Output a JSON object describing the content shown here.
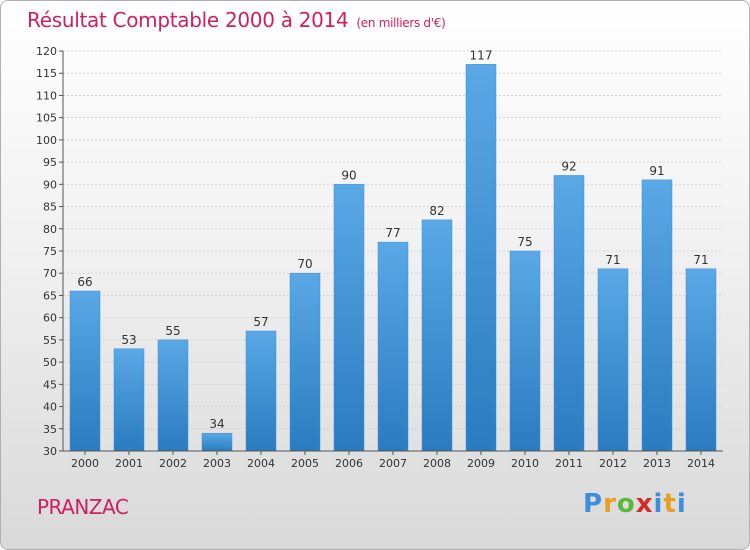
{
  "title": {
    "main": "Résultat Comptable 2000 à 2014",
    "sub": "(en milliers d'€)"
  },
  "town": "PRANZAC",
  "logo": {
    "text": "Proxiti",
    "letters": [
      "P",
      "r",
      "o",
      "x",
      "i",
      "t",
      "i"
    ]
  },
  "colors": {
    "title": "#cf1f5f",
    "bar_top": "#5aa8e6",
    "bar_bottom": "#2a7bc0"
  },
  "chart_data": {
    "type": "bar",
    "title": "Résultat Comptable 2000 à 2014",
    "subtitle": "(en milliers d'€)",
    "categories": [
      "2000",
      "2001",
      "2002",
      "2003",
      "2004",
      "2005",
      "2006",
      "2007",
      "2008",
      "2009",
      "2010",
      "2011",
      "2012",
      "2013",
      "2014"
    ],
    "values": [
      66,
      53,
      55,
      34,
      57,
      70,
      90,
      77,
      82,
      117,
      75,
      92,
      71,
      91,
      71
    ],
    "xlabel": "",
    "ylabel": "",
    "ylim": [
      30,
      120
    ],
    "yticks": [
      30,
      35,
      40,
      45,
      50,
      55,
      60,
      65,
      70,
      75,
      80,
      85,
      90,
      95,
      100,
      105,
      110,
      115,
      120
    ],
    "grid": true
  }
}
